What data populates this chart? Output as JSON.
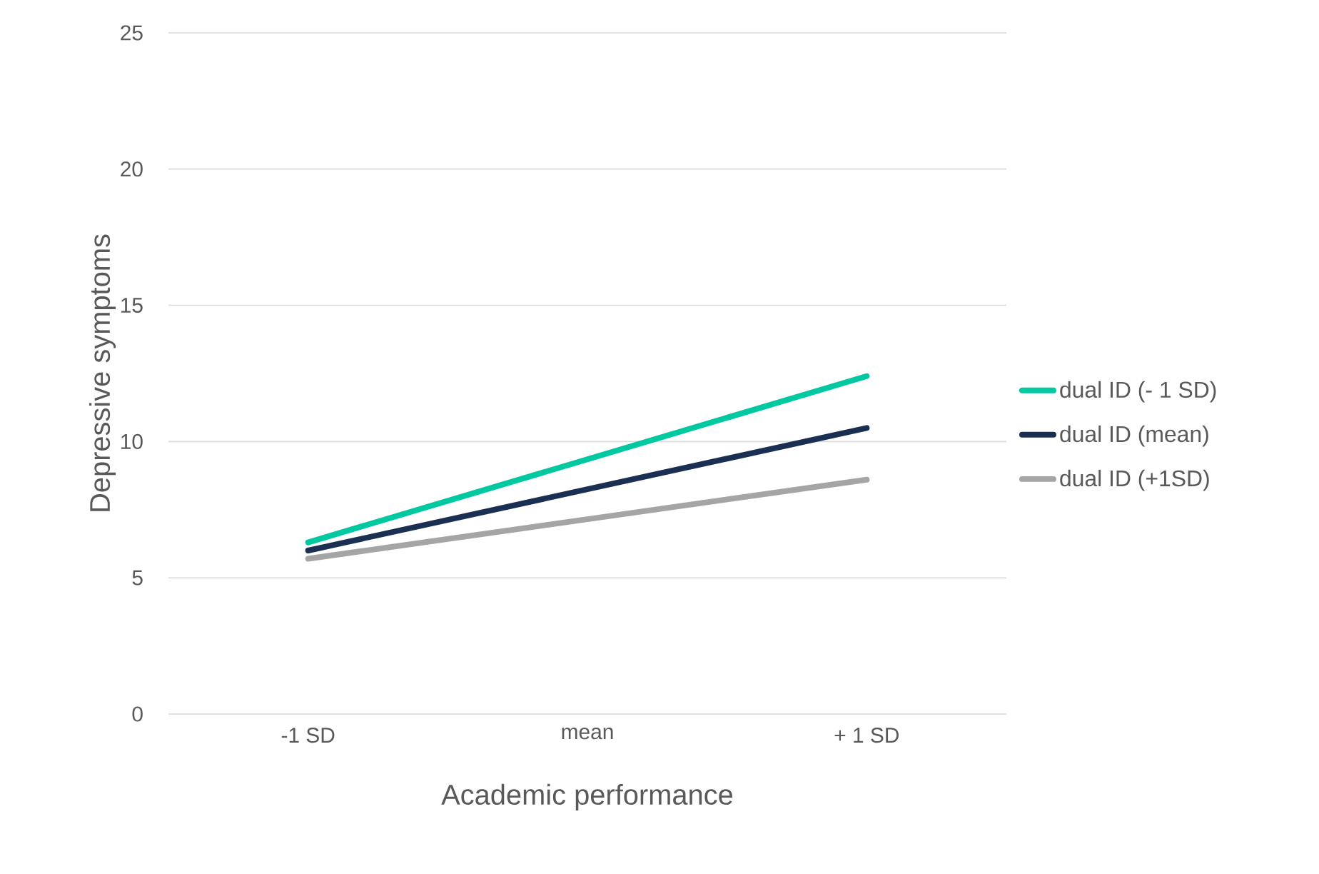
{
  "chart_data": {
    "type": "line",
    "xlabel": "Academic performance",
    "ylabel": "Depressive symptoms",
    "categories": [
      "-1 SD",
      "mean",
      "+ 1 SD"
    ],
    "series": [
      {
        "name": "dual ID (- 1 SD)",
        "color": "#00c8a0",
        "values": [
          6.3,
          9.35,
          12.4
        ]
      },
      {
        "name": "dual ID (mean)",
        "color": "#1b2f52",
        "values": [
          6.0,
          8.25,
          10.5
        ]
      },
      {
        "name": "dual ID (+1SD)",
        "color": "#a5a5a5",
        "values": [
          5.7,
          7.15,
          8.6
        ]
      }
    ],
    "ylim": [
      0,
      25
    ],
    "yticks": [
      0,
      5,
      10,
      15,
      20,
      25
    ],
    "grid": "y",
    "legend": "right",
    "marker": "none",
    "line_style": "solid"
  }
}
